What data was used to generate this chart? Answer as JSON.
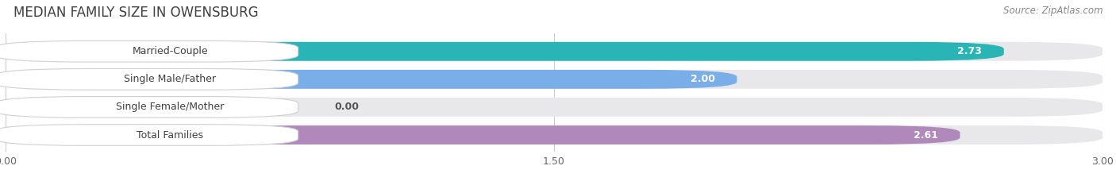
{
  "title": "MEDIAN FAMILY SIZE IN OWENSBURG",
  "source": "Source: ZipAtlas.com",
  "categories": [
    "Married-Couple",
    "Single Male/Father",
    "Single Female/Mother",
    "Total Families"
  ],
  "values": [
    2.73,
    2.0,
    0.0,
    2.61
  ],
  "bar_colors": [
    "#29b5b5",
    "#7aaee8",
    "#f093a0",
    "#b088bc"
  ],
  "bar_labels": [
    "2.73",
    "2.00",
    "0.00",
    "2.61"
  ],
  "xlim": [
    0,
    3.0
  ],
  "xticks": [
    0.0,
    1.5,
    3.0
  ],
  "xticklabels": [
    "0.00",
    "1.50",
    "3.00"
  ],
  "background_color": "#ffffff",
  "bar_bg_color": "#e8e8eb",
  "title_fontsize": 12,
  "source_fontsize": 8.5,
  "label_fontsize": 9,
  "value_fontsize": 9
}
